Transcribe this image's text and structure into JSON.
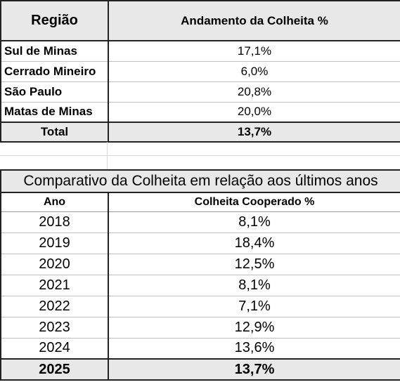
{
  "table1": {
    "headers": [
      "Região",
      "Andamento da Colheita %"
    ],
    "rows": [
      {
        "regiao": "Sul de Minas",
        "valor": "17,1%"
      },
      {
        "regiao": "Cerrado Mineiro",
        "valor": "6,0%"
      },
      {
        "regiao": "São Paulo",
        "valor": "20,8%"
      },
      {
        "regiao": "Matas de Minas",
        "valor": "20,0%"
      }
    ],
    "total": {
      "label": "Total",
      "valor": "13,7%"
    }
  },
  "table2": {
    "title": "Comparativo da Colheita em relação aos últimos anos",
    "headers": [
      "Ano",
      "Colheita Cooperado %"
    ],
    "rows": [
      {
        "ano": "2018",
        "valor": "8,1%"
      },
      {
        "ano": "2019",
        "valor": "18,4%"
      },
      {
        "ano": "2020",
        "valor": "12,5%"
      },
      {
        "ano": "2021",
        "valor": "8,1%"
      },
      {
        "ano": "2022",
        "valor": "7,1%"
      },
      {
        "ano": "2023",
        "valor": "12,9%"
      },
      {
        "ano": "2024",
        "valor": "13,6%"
      }
    ],
    "last": {
      "ano": "2025",
      "valor": "13,7%"
    }
  }
}
